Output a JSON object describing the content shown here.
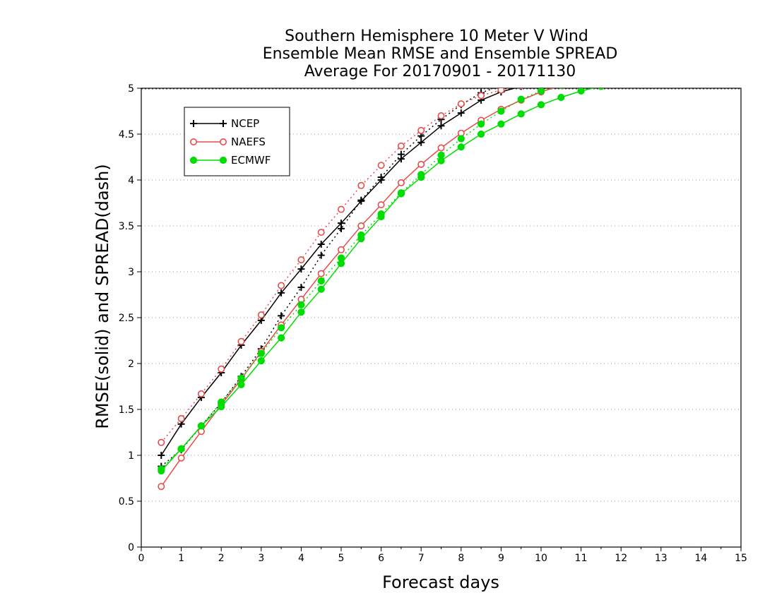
{
  "chart_data": {
    "type": "line",
    "title": [
      "Southern Hemisphere 10 Meter V Wind",
      "Ensemble Mean RMSE and Ensemble SPREAD",
      "Average For 20170901 - 20171130"
    ],
    "xlabel": "Forecast days",
    "ylabel": "RMSE(solid) and SPREAD(dash)",
    "xlim": [
      0,
      15
    ],
    "ylim": [
      0,
      5
    ],
    "xticks": [
      0,
      1,
      2,
      3,
      4,
      5,
      6,
      7,
      8,
      9,
      10,
      11,
      12,
      13,
      14,
      15
    ],
    "yticks": [
      0,
      0.5,
      1,
      1.5,
      2,
      2.5,
      3,
      3.5,
      4,
      4.5,
      5
    ],
    "ytick_labels": [
      "0",
      "0.5",
      "1",
      "1.5",
      "2",
      "2.5",
      "3",
      "3.5",
      "4",
      "4.5",
      "5"
    ],
    "grid": "horizontal dotted",
    "legend_position": "top-left",
    "x": [
      0.5,
      1,
      1.5,
      2,
      2.5,
      3,
      3.5,
      4,
      4.5,
      5,
      5.5,
      6,
      6.5,
      7,
      7.5,
      8,
      8.5,
      9,
      9.5,
      10,
      10.5,
      11,
      11.5
    ],
    "series": [
      {
        "name": "NCEP",
        "color": "#000000",
        "marker": "plus",
        "metric": "RMSE",
        "style": "solid",
        "values": [
          1.0,
          1.34,
          1.63,
          1.9,
          2.2,
          2.47,
          2.77,
          3.03,
          3.3,
          3.53,
          3.77,
          4.0,
          4.23,
          4.41,
          4.59,
          4.73,
          4.87,
          4.96,
          5.02,
          5.06,
          5.1,
          5.13,
          5.15
        ]
      },
      {
        "name": "NCEP",
        "color": "#000000",
        "marker": "plus",
        "metric": "SPREAD",
        "style": "dash",
        "values": [
          0.88,
          1.06,
          1.32,
          1.57,
          1.86,
          2.16,
          2.52,
          2.83,
          3.18,
          3.47,
          3.78,
          4.03,
          4.28,
          4.48,
          4.66,
          4.82,
          4.95,
          5.03,
          5.08,
          5.11,
          5.14,
          5.16,
          5.18
        ]
      },
      {
        "name": "NAEFS",
        "color": "#e84a4a",
        "marker": "circle-open",
        "metric": "RMSE",
        "style": "solid",
        "values": [
          0.66,
          0.97,
          1.26,
          1.55,
          1.83,
          2.13,
          2.42,
          2.7,
          2.98,
          3.24,
          3.5,
          3.73,
          3.97,
          4.17,
          4.35,
          4.51,
          4.65,
          4.77,
          4.87,
          4.96,
          5.03,
          5.08,
          5.12
        ]
      },
      {
        "name": "NAEFS",
        "color": "#e84a4a",
        "marker": "circle-open",
        "metric": "SPREAD",
        "style": "dash",
        "values": [
          1.14,
          1.4,
          1.67,
          1.94,
          2.24,
          2.53,
          2.85,
          3.13,
          3.43,
          3.68,
          3.94,
          4.16,
          4.37,
          4.54,
          4.7,
          4.83,
          4.92,
          4.98,
          5.03,
          5.06,
          5.09,
          5.11,
          5.13
        ]
      },
      {
        "name": "ECMWF",
        "color": "#00dd00",
        "marker": "circle-filled",
        "metric": "RMSE",
        "style": "solid",
        "values": [
          0.83,
          1.07,
          1.32,
          1.53,
          1.77,
          2.03,
          2.28,
          2.56,
          2.81,
          3.09,
          3.36,
          3.6,
          3.85,
          4.03,
          4.21,
          4.36,
          4.5,
          4.61,
          4.72,
          4.82,
          4.9,
          4.97,
          5.02
        ]
      },
      {
        "name": "ECMWF",
        "color": "#00dd00",
        "marker": "circle-filled",
        "metric": "SPREAD",
        "style": "dash",
        "values": [
          0.85,
          1.07,
          1.32,
          1.58,
          1.84,
          2.11,
          2.39,
          2.64,
          2.9,
          3.15,
          3.4,
          3.63,
          3.86,
          4.06,
          4.27,
          4.45,
          4.61,
          4.75,
          4.88,
          4.97,
          5.03,
          5.07,
          5.1
        ]
      }
    ],
    "legend": [
      {
        "label": "NCEP",
        "color": "#000000",
        "marker": "plus"
      },
      {
        "label": "NAEFS",
        "color": "#e84a4a",
        "marker": "circle-open"
      },
      {
        "label": "ECMWF",
        "color": "#00dd00",
        "marker": "circle-filled"
      }
    ]
  }
}
